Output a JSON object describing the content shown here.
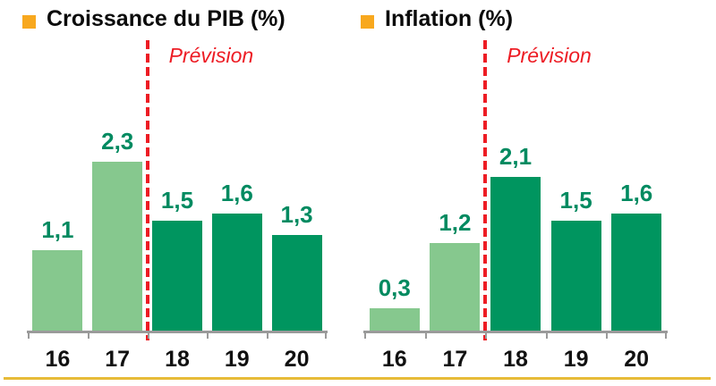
{
  "page": {
    "background_color": "#ffffff",
    "bottom_rule_color": "#e7bb38"
  },
  "chart_data": [
    {
      "type": "bar",
      "title": "Croissance du PIB (%)",
      "legend_marker_color": "#f8a81e",
      "annotation": {
        "text": "Prévision",
        "color": "#ed1c24",
        "position": "top, right of dashed divider"
      },
      "categories": [
        "16",
        "17",
        "18",
        "19",
        "20"
      ],
      "values": [
        1.1,
        2.3,
        1.5,
        1.6,
        1.3
      ],
      "value_labels": [
        "1,1",
        "2,3",
        "1,5",
        "1,6",
        "1,3"
      ],
      "forecast_start_index": 2,
      "divider": "vertical red dashed line between 17 and 18",
      "ylim": [
        0,
        2.5
      ],
      "grid": false,
      "xlabel": "",
      "ylabel": "",
      "colors": {
        "actual_bar": "#86c88e",
        "forecast_bar": "#00955f",
        "value_label": "#008a60",
        "divider": "#ed1c24",
        "axis": "#9a9a9a",
        "tick_label": "#111111"
      }
    },
    {
      "type": "bar",
      "title": "Inflation (%)",
      "legend_marker_color": "#f8a81e",
      "annotation": {
        "text": "Prévision",
        "color": "#ed1c24",
        "position": "top, right of dashed divider"
      },
      "categories": [
        "16",
        "17",
        "18",
        "19",
        "20"
      ],
      "values": [
        0.3,
        1.2,
        2.1,
        1.5,
        1.6
      ],
      "value_labels": [
        "0,3",
        "1,2",
        "2,1",
        "1,5",
        "1,6"
      ],
      "forecast_start_index": 2,
      "divider": "vertical red dashed line between 17 and 18",
      "ylim": [
        0,
        2.5
      ],
      "grid": false,
      "xlabel": "",
      "ylabel": "",
      "colors": {
        "actual_bar": "#86c88e",
        "forecast_bar": "#00955f",
        "value_label": "#008a60",
        "divider": "#ed1c24",
        "axis": "#9a9a9a",
        "tick_label": "#111111"
      }
    }
  ]
}
